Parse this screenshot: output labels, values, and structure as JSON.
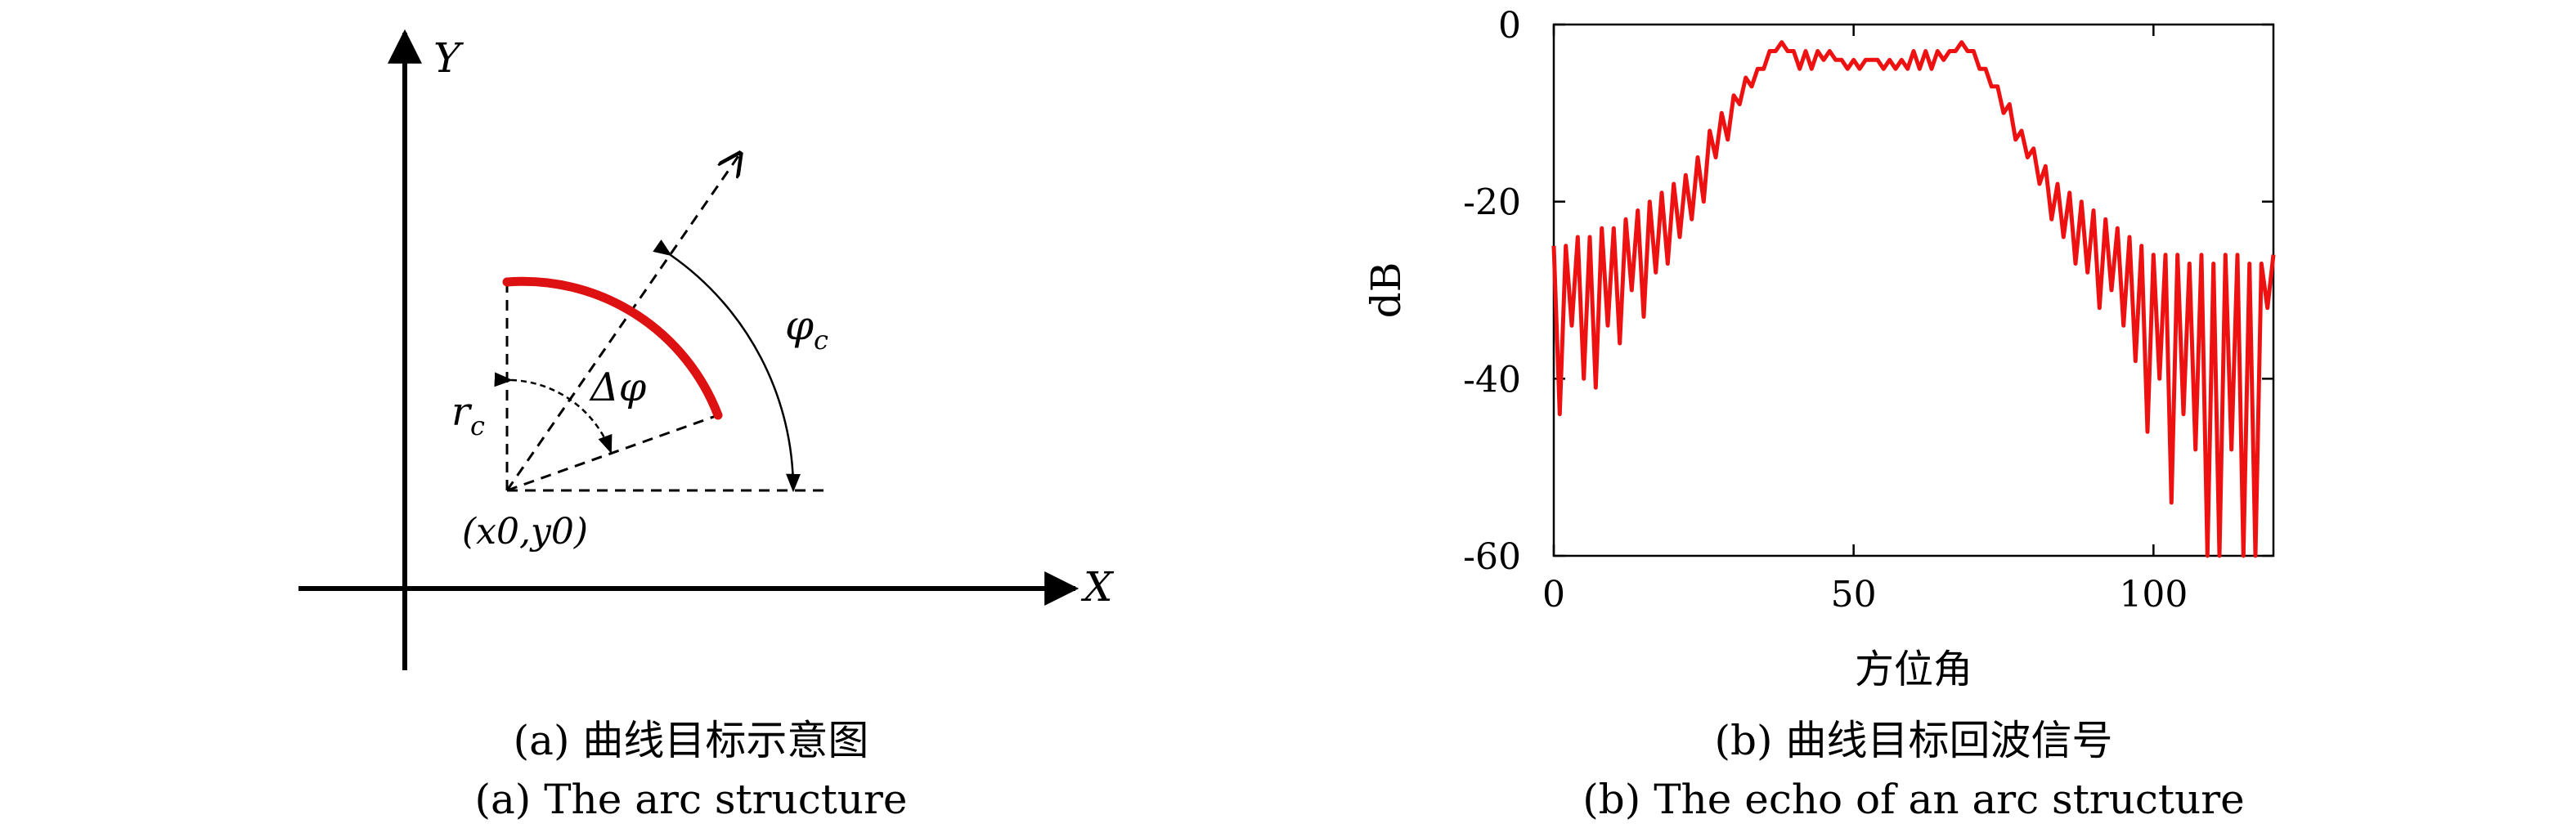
{
  "panel_a": {
    "axis_y_label": "Y",
    "axis_x_label": "X",
    "label_rc": "r",
    "label_rc_sub": "c",
    "label_dphi": "Δφ",
    "label_phic": "φ",
    "label_phic_sub": "c",
    "label_origin": "(x0,y0)",
    "arc_color": "#dd1111",
    "caption_cn": "(a) 曲线目标示意图",
    "caption_en": "(a) The arc structure"
  },
  "panel_b": {
    "caption_cn": "(b) 曲线目标回波信号",
    "caption_en": "(b) The echo of an arc structure"
  },
  "chart_data": {
    "type": "line",
    "xlabel": "方位角",
    "ylabel": "dB",
    "xlim": [
      0,
      120
    ],
    "ylim": [
      -60,
      0
    ],
    "xticks": [
      0,
      50,
      100
    ],
    "yticks": [
      0,
      -20,
      -40,
      -60
    ],
    "grid": false,
    "line_color": "#ee1111",
    "series": [
      {
        "x": [
          0,
          1,
          2,
          3,
          4,
          5,
          6,
          7,
          8,
          9,
          10,
          11,
          12,
          13,
          14,
          15,
          16,
          17,
          18,
          19,
          20,
          21,
          22,
          23,
          24,
          25,
          26,
          27,
          28,
          29,
          30,
          31,
          32,
          33,
          34,
          35,
          36,
          37,
          38,
          39,
          40,
          41,
          42,
          43,
          44,
          45,
          46,
          47,
          48,
          49,
          50,
          51,
          52,
          53,
          54,
          55,
          56,
          57,
          58,
          59,
          60,
          61,
          62,
          63,
          64,
          65,
          66,
          67,
          68,
          69,
          70,
          71,
          72,
          73,
          74,
          75,
          76,
          77,
          78,
          79,
          80,
          81,
          82,
          83,
          84,
          85,
          86,
          87,
          88,
          89,
          90,
          91,
          92,
          93,
          94,
          95,
          96,
          97,
          98,
          99,
          100,
          101,
          102,
          103,
          104,
          105,
          106,
          107,
          108,
          109,
          110,
          111,
          112,
          113,
          114,
          115,
          116,
          117,
          118,
          119,
          120
        ],
        "y": [
          -25,
          -44,
          -25,
          -34,
          -24,
          -40,
          -24,
          -41,
          -23,
          -34,
          -23,
          -36,
          -22,
          -30,
          -21,
          -33,
          -20,
          -28,
          -19,
          -27,
          -18,
          -24,
          -17,
          -22,
          -15,
          -20,
          -12,
          -15,
          -10,
          -13,
          -8,
          -9,
          -6,
          -7,
          -5,
          -5,
          -3,
          -3,
          -2,
          -3,
          -3,
          -5,
          -3,
          -5,
          -3,
          -4,
          -3,
          -4,
          -4,
          -5,
          -4,
          -5,
          -4,
          -4,
          -4,
          -5,
          -4,
          -5,
          -4,
          -5,
          -3,
          -5,
          -3,
          -5,
          -3,
          -4,
          -3,
          -3,
          -2,
          -3,
          -3,
          -5,
          -5,
          -7,
          -7,
          -10,
          -9,
          -13,
          -12,
          -15,
          -14,
          -18,
          -16,
          -22,
          -18,
          -24,
          -19,
          -27,
          -20,
          -28,
          -21,
          -32,
          -22,
          -30,
          -23,
          -34,
          -24,
          -38,
          -25,
          -46,
          -26,
          -40,
          -26,
          -54,
          -26,
          -44,
          -27,
          -48,
          -26,
          -60,
          -27,
          -60,
          -26,
          -48,
          -26,
          -60,
          -27,
          -60,
          -27,
          -32,
          -26
        ]
      }
    ]
  }
}
